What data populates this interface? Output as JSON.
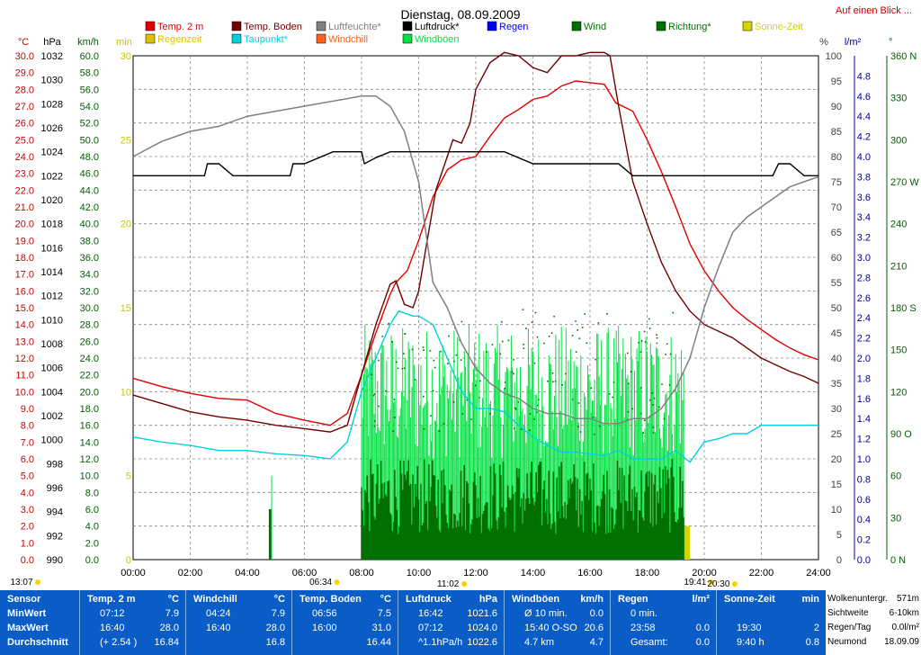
{
  "chart_data": {
    "type": "line",
    "title": "Dienstag, 08.09.2009",
    "top_right_link": "Auf einen Blick ...",
    "x_ticks": [
      "00:00",
      "02:00",
      "04:00",
      "06:00",
      "08:00",
      "10:00",
      "12:00",
      "14:00",
      "16:00",
      "18:00",
      "20:00",
      "22:00",
      "24:00"
    ],
    "x_range_hours": [
      0,
      24
    ],
    "grid": true,
    "legend_rows": [
      [
        {
          "label": "Temp. 2 m",
          "color": "#e00000"
        },
        {
          "label": "Temp. Boden",
          "color": "#700000"
        },
        {
          "label": "Luftfeuchte*",
          "color": "#808080"
        },
        {
          "label": "Luftdruck*",
          "color": "#000000"
        },
        {
          "label": "Regen",
          "color": "#0000ff"
        },
        {
          "label": "Wind",
          "color": "#007000"
        },
        {
          "label": "Richtung*",
          "color": "#007000"
        },
        {
          "label": "Sonne-Zeit",
          "color": "#d4d400"
        }
      ],
      [
        {
          "label": "Regenzeit",
          "color": "#e0c000"
        },
        {
          "label": "Taupunkt*",
          "color": "#00d0e0"
        },
        {
          "label": "Windchill",
          "color": "#ff6020"
        },
        {
          "label": "Windböen",
          "color": "#00e040"
        }
      ]
    ],
    "left_axes": [
      {
        "unit": "°C",
        "color": "#cc0000",
        "ticks": [
          "30.0",
          "29.0",
          "28.0",
          "27.0",
          "26.0",
          "25.0",
          "24.0",
          "23.0",
          "22.0",
          "21.0",
          "20.0",
          "19.0",
          "18.0",
          "17.0",
          "16.0",
          "15.0",
          "14.0",
          "13.0",
          "12.0",
          "11.0",
          "10.0",
          "9.0",
          "8.0",
          "7.0",
          "6.0",
          "5.0",
          "4.0",
          "3.0",
          "2.0",
          "1.0",
          "0.0"
        ]
      },
      {
        "unit": "hPa",
        "color": "#000000",
        "ticks": [
          "1032",
          "1030",
          "1028",
          "1026",
          "1024",
          "1022",
          "1020",
          "1018",
          "1016",
          "1014",
          "1012",
          "1010",
          "1008",
          "1006",
          "1004",
          "1002",
          "1000",
          "998",
          "996",
          "994",
          "992",
          "990"
        ]
      },
      {
        "unit": "km/h",
        "color": "#006000",
        "ticks": [
          "60.0",
          "58.0",
          "56.0",
          "54.0",
          "52.0",
          "50.0",
          "48.0",
          "46.0",
          "44.0",
          "42.0",
          "40.0",
          "38.0",
          "36.0",
          "34.0",
          "32.0",
          "30.0",
          "28.0",
          "26.0",
          "24.0",
          "22.0",
          "20.0",
          "18.0",
          "16.0",
          "14.0",
          "12.0",
          "10.0",
          "8.0",
          "6.0",
          "4.0",
          "2.0",
          "0.0"
        ]
      },
      {
        "unit": "min",
        "color": "#c8c800",
        "ticks": [
          "30",
          "25",
          "20",
          "15",
          "10",
          "5",
          "0"
        ]
      }
    ],
    "right_axes": [
      {
        "unit": "%",
        "color": "#404040",
        "ticks": [
          "100",
          "95",
          "90",
          "85",
          "80",
          "75",
          "70",
          "65",
          "60",
          "55",
          "50",
          "45",
          "40",
          "35",
          "30",
          "25",
          "20",
          "15",
          "10",
          "5",
          "0"
        ]
      },
      {
        "unit": "l/m²",
        "color": "#0000a0",
        "ticks": [
          "4.8",
          "4.6",
          "4.4",
          "4.2",
          "4.0",
          "3.8",
          "3.6",
          "3.4",
          "3.2",
          "3.0",
          "2.8",
          "2.6",
          "2.4",
          "2.2",
          "2.0",
          "1.8",
          "1.6",
          "1.4",
          "1.2",
          "1.0",
          "0.8",
          "0.6",
          "0.4",
          "0.2",
          "0.0"
        ]
      },
      {
        "unit": "°",
        "color": "#006000",
        "ticks": [
          "360 N",
          "330",
          "300",
          "270 W",
          "240",
          "210",
          "180 S",
          "150",
          "120",
          "90 O",
          "60",
          "30",
          "0 N"
        ]
      }
    ],
    "sun_markers": [
      {
        "label": "13:07",
        "hour": 0.0
      },
      {
        "label": "06:34",
        "hour": 6.57
      },
      {
        "label": "11:02",
        "hour": 11.03
      },
      {
        "label": "19:41",
        "hour": 19.68
      },
      {
        "label": "20:30",
        "hour": 20.5
      }
    ],
    "series": [
      {
        "name": "Temp. 2 m",
        "unit": "°C",
        "color": "#e00000",
        "x": [
          0,
          1,
          2,
          3,
          4,
          5,
          6,
          6.9,
          7.5,
          8,
          8.5,
          9,
          9.2,
          9.6,
          10,
          10.5,
          11,
          11.5,
          12,
          12.5,
          13,
          13.5,
          14,
          14.5,
          15,
          15.5,
          16,
          16.5,
          16.9,
          17.5,
          18,
          18.5,
          19,
          19.5,
          20,
          20.5,
          21,
          21.5,
          22,
          22.5,
          23,
          23.5,
          24
        ],
        "y": [
          10.8,
          10.3,
          9.9,
          9.6,
          9.5,
          8.7,
          8.3,
          8.0,
          8.7,
          11.0,
          13.5,
          15.8,
          16.5,
          17.2,
          19.0,
          21.6,
          23.2,
          23.8,
          24.0,
          25.2,
          26.3,
          26.8,
          27.4,
          27.6,
          28.2,
          28.5,
          28.4,
          28.3,
          27.2,
          26.7,
          25.0,
          23.1,
          21.0,
          18.8,
          17.2,
          16.0,
          15.0,
          14.3,
          13.7,
          13.1,
          12.6,
          12.2,
          11.9
        ]
      },
      {
        "name": "Temp. Boden",
        "unit": "°C",
        "color": "#700000",
        "x": [
          0,
          1,
          2,
          3,
          4,
          5,
          6,
          6.9,
          7.5,
          8,
          8.5,
          9,
          9.2,
          9.5,
          9.8,
          10,
          10.3,
          10.6,
          11,
          11.2,
          11.5,
          11.8,
          12,
          12.5,
          13,
          13.5,
          14,
          14.5,
          15,
          15.5,
          16,
          16.5,
          16.7,
          17,
          17.5,
          18,
          18.5,
          19,
          19.5,
          20,
          20.5,
          21,
          21.5,
          22,
          22.5,
          23,
          23.5,
          24
        ],
        "y": [
          9.8,
          9.3,
          8.8,
          8.5,
          8.3,
          8.0,
          7.8,
          7.6,
          8.0,
          11.0,
          14.0,
          16.4,
          16.6,
          15.2,
          15.0,
          16.0,
          19.0,
          22.0,
          24.0,
          25.0,
          24.8,
          26.0,
          28.0,
          29.6,
          30.2,
          30.0,
          29.3,
          29.0,
          30.0,
          30.0,
          30.2,
          30.2,
          30.0,
          27.0,
          22.5,
          20.0,
          17.7,
          16.0,
          14.8,
          14.0,
          13.6,
          13.2,
          12.6,
          12.0,
          11.6,
          11.2,
          10.9,
          10.5
        ]
      },
      {
        "name": "Luftfeuchte*",
        "unit": "%",
        "color": "#808080",
        "x": [
          0,
          1,
          2,
          3,
          4,
          5,
          6,
          7,
          8,
          8.5,
          9,
          9.5,
          10,
          10.5,
          11,
          11.5,
          12,
          12.5,
          13,
          13.5,
          14,
          14.5,
          15,
          15.5,
          16,
          16.5,
          17,
          17.5,
          18,
          18.5,
          19,
          19.5,
          20,
          20.5,
          21,
          21.5,
          22,
          22.5,
          23,
          23.5,
          24
        ],
        "y": [
          80,
          83,
          85,
          86,
          88,
          89,
          90,
          91,
          92,
          92,
          90,
          85,
          75,
          55,
          50,
          43,
          38,
          35,
          33,
          32,
          30,
          29,
          29,
          28,
          28,
          27,
          27,
          28,
          28,
          30,
          34,
          40,
          50,
          58,
          65,
          68,
          70,
          72,
          74,
          75,
          76
        ]
      },
      {
        "name": "Luftdruck*",
        "unit": "hPa",
        "color": "#000000",
        "x": [
          0,
          1,
          2,
          2.5,
          2.6,
          3,
          3.5,
          3.6,
          4,
          5,
          5.5,
          5.6,
          6,
          7,
          8,
          8.1,
          8.5,
          9,
          10,
          11,
          12,
          13,
          14,
          15,
          16,
          16.5,
          17,
          17.5,
          18,
          19,
          20,
          21,
          22,
          22.4,
          22.6,
          23,
          23.5,
          24
        ],
        "y": [
          1022,
          1022,
          1022,
          1022,
          1023,
          1023,
          1022,
          1022,
          1022,
          1022,
          1022,
          1023,
          1023,
          1024,
          1024,
          1023,
          1023.5,
          1024,
          1024,
          1024,
          1024,
          1024,
          1023,
          1023,
          1023,
          1023,
          1023,
          1022,
          1022,
          1022,
          1022,
          1022,
          1022,
          1022,
          1023,
          1023,
          1022,
          1022
        ]
      },
      {
        "name": "Taupunkt*",
        "unit": "°C",
        "color": "#00d0e0",
        "x": [
          0,
          1,
          2,
          3,
          4,
          5,
          6,
          6.9,
          7.5,
          8,
          8.5,
          9,
          9.3,
          9.8,
          10,
          10.5,
          11,
          11.5,
          12,
          12.5,
          13,
          13.5,
          14,
          14.5,
          15,
          15.5,
          16,
          16.5,
          17,
          17.5,
          18,
          18.5,
          19,
          19.5,
          20,
          20.5,
          21,
          21.5,
          22,
          22.5,
          23,
          23.5,
          24
        ],
        "y": [
          7.3,
          7.0,
          6.8,
          6.5,
          6.5,
          6.3,
          6.2,
          6.0,
          7.0,
          10.0,
          12.0,
          14.0,
          14.8,
          14.5,
          14.5,
          14.0,
          12.0,
          10.0,
          9.0,
          9.0,
          8.8,
          8.0,
          7.3,
          6.8,
          6.4,
          6.4,
          6.3,
          6.2,
          6.5,
          6.0,
          6.0,
          6.0,
          6.5,
          5.8,
          7.0,
          7.2,
          7.5,
          7.5,
          8.0,
          8.0,
          8.0,
          8.0,
          8.0
        ]
      }
    ],
    "wind_gusts_kmh": {
      "name": "Windböen",
      "range_hours": [
        8.0,
        19.3
      ],
      "typical": [
        12,
        28
      ]
    },
    "wind_mean_kmh": {
      "name": "Wind",
      "range_hours": [
        8.0,
        19.3
      ],
      "typical": [
        3,
        12
      ]
    },
    "wind_direction_deg": {
      "name": "Richtung*",
      "range_hours": [
        8.3,
        19.0
      ],
      "typical": [
        90,
        180
      ]
    },
    "sunshine_min": {
      "name": "Sonne-Zeit",
      "from_hour": 10.1,
      "to_hour": 19.5,
      "value": 2
    }
  },
  "stats": {
    "sections": [
      {
        "header": [
          "Sensor",
          ""
        ],
        "rows": [
          [
            "MinWert",
            ""
          ],
          [
            "MaxWert",
            ""
          ],
          [
            "Durchschnitt",
            ""
          ]
        ]
      },
      {
        "header": [
          "Temp. 2 m",
          "°C"
        ],
        "rows": [
          [
            "07:12",
            "7.9"
          ],
          [
            "16:40",
            "28.0"
          ],
          [
            "(+ 2.54 )",
            "16.84"
          ]
        ]
      },
      {
        "header": [
          "Windchill",
          "°C"
        ],
        "rows": [
          [
            "04:24",
            "7.9"
          ],
          [
            "16:40",
            "28.0"
          ],
          [
            "",
            "16.8"
          ]
        ]
      },
      {
        "header": [
          "Temp. Boden",
          "°C"
        ],
        "rows": [
          [
            "06:56",
            "7.5"
          ],
          [
            "16:00",
            "31.0"
          ],
          [
            "",
            "16.44"
          ]
        ]
      },
      {
        "header": [
          "Luftdruck",
          "hPa"
        ],
        "rows": [
          [
            "16:42",
            "1021.6"
          ],
          [
            "07:12",
            "1024.0"
          ],
          [
            "^1.1hPa/h",
            "1022.6"
          ]
        ]
      },
      {
        "header": [
          "Windböen",
          "km/h"
        ],
        "rows": [
          [
            "Ø 10 min.",
            "0.0"
          ],
          [
            "15:40   O-SO",
            "20.6"
          ],
          [
            "4.7 km",
            "4.7"
          ]
        ]
      },
      {
        "header": [
          "Regen",
          "l/m²"
        ],
        "rows": [
          [
            "0 min.",
            ""
          ],
          [
            "23:58",
            "0.0"
          ],
          [
            "Gesamt:",
            "0.0"
          ]
        ]
      },
      {
        "header": [
          "Sonne-Zeit",
          "min"
        ],
        "rows": [
          [
            "",
            ""
          ],
          [
            "19:30",
            "2"
          ],
          [
            "9:40 h",
            "0.8"
          ]
        ]
      }
    ],
    "extra": [
      [
        "Wolkenuntergr.",
        "571m"
      ],
      [
        "Sichtweite",
        "6-10km"
      ],
      [
        "Regen/Tag",
        "0.0l/m²"
      ],
      [
        "Neumond",
        "18.09.09"
      ]
    ]
  }
}
